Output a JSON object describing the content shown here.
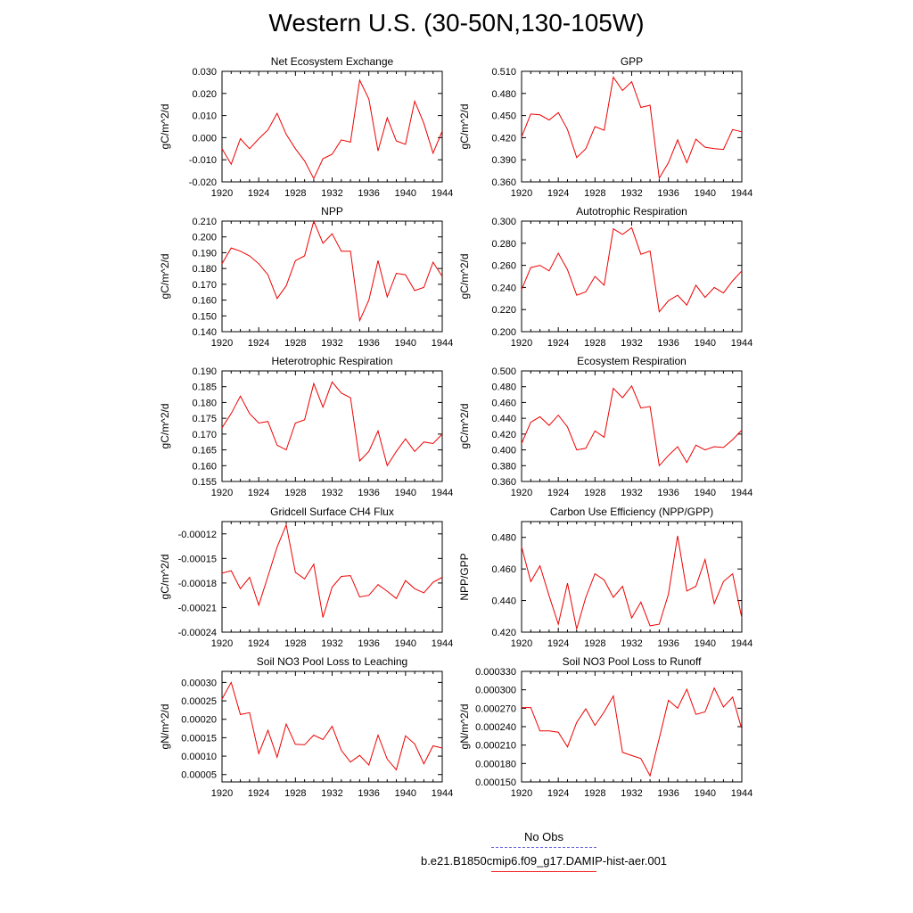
{
  "title": "Western U.S. (30-50N,130-105W)",
  "legend": {
    "obs_label": "No Obs",
    "model_label": "b.e21.B1850cmip6.f09_g17.DAMIP-hist-aer.001",
    "colors": {
      "obs": "#6666dd",
      "model": "#ee0000"
    }
  },
  "chart_data": [
    {
      "type": "line",
      "title": "Net Ecosystem Exchange",
      "xlabel": "",
      "ylabel": "gC/m^2/d",
      "xlim": [
        1920,
        1944
      ],
      "ylim": [
        -0.02,
        0.03
      ],
      "xticks": [
        1920,
        1924,
        1928,
        1932,
        1936,
        1940,
        1944
      ],
      "yticks": [
        -0.02,
        -0.01,
        0.0,
        0.01,
        0.02,
        0.03
      ],
      "ytick_labels": [
        "-0.020",
        "-0.010",
        "0.000",
        "0.010",
        "0.020",
        "0.030"
      ],
      "x": [
        1920,
        1921,
        1922,
        1923,
        1924,
        1925,
        1926,
        1927,
        1928,
        1929,
        1930,
        1931,
        1932,
        1933,
        1934,
        1935,
        1936,
        1937,
        1938,
        1939,
        1940,
        1941,
        1942,
        1943,
        1944
      ],
      "values": [
        -0.005,
        -0.012,
        -0.0005,
        -0.005,
        -0.0005,
        0.0035,
        0.011,
        0.0015,
        -0.005,
        -0.0105,
        -0.0185,
        -0.0095,
        -0.0075,
        -0.001,
        -0.002,
        0.026,
        0.0175,
        -0.006,
        0.009,
        -0.0015,
        -0.003,
        0.0165,
        0.0065,
        -0.007,
        0.003
      ]
    },
    {
      "type": "line",
      "title": "GPP",
      "xlabel": "",
      "ylabel": "gC/m^2/d",
      "xlim": [
        1920,
        1944
      ],
      "ylim": [
        0.36,
        0.51
      ],
      "xticks": [
        1920,
        1924,
        1928,
        1932,
        1936,
        1940,
        1944
      ],
      "yticks": [
        0.36,
        0.39,
        0.42,
        0.45,
        0.48,
        0.51
      ],
      "ytick_labels": [
        "0.360",
        "0.390",
        "0.420",
        "0.450",
        "0.480",
        "0.510"
      ],
      "x": [
        1920,
        1921,
        1922,
        1923,
        1924,
        1925,
        1926,
        1927,
        1928,
        1929,
        1930,
        1931,
        1932,
        1933,
        1934,
        1935,
        1936,
        1937,
        1938,
        1939,
        1940,
        1941,
        1942,
        1943,
        1944
      ],
      "values": [
        0.421,
        0.452,
        0.451,
        0.444,
        0.454,
        0.431,
        0.393,
        0.405,
        0.435,
        0.43,
        0.502,
        0.484,
        0.496,
        0.461,
        0.464,
        0.365,
        0.386,
        0.417,
        0.386,
        0.418,
        0.407,
        0.405,
        0.404,
        0.431,
        0.428
      ]
    },
    {
      "type": "line",
      "title": "NPP",
      "xlabel": "",
      "ylabel": "gC/m^2/d",
      "xlim": [
        1920,
        1944
      ],
      "ylim": [
        0.14,
        0.21
      ],
      "xticks": [
        1920,
        1924,
        1928,
        1932,
        1936,
        1940,
        1944
      ],
      "yticks": [
        0.14,
        0.15,
        0.16,
        0.17,
        0.18,
        0.19,
        0.2,
        0.21
      ],
      "ytick_labels": [
        "0.140",
        "0.150",
        "0.160",
        "0.170",
        "0.180",
        "0.190",
        "0.200",
        "0.210"
      ],
      "x": [
        1920,
        1921,
        1922,
        1923,
        1924,
        1925,
        1926,
        1927,
        1928,
        1929,
        1930,
        1931,
        1932,
        1933,
        1934,
        1935,
        1936,
        1937,
        1938,
        1939,
        1940,
        1941,
        1942,
        1943,
        1944
      ],
      "values": [
        0.183,
        0.193,
        0.191,
        0.188,
        0.183,
        0.176,
        0.161,
        0.169,
        0.185,
        0.188,
        0.21,
        0.196,
        0.202,
        0.191,
        0.191,
        0.147,
        0.16,
        0.185,
        0.162,
        0.177,
        0.176,
        0.166,
        0.168,
        0.184,
        0.175
      ]
    },
    {
      "type": "line",
      "title": "Autotrophic Respiration",
      "xlabel": "",
      "ylabel": "gC/m^2/d",
      "xlim": [
        1920,
        1944
      ],
      "ylim": [
        0.2,
        0.3
      ],
      "xticks": [
        1920,
        1924,
        1928,
        1932,
        1936,
        1940,
        1944
      ],
      "yticks": [
        0.2,
        0.22,
        0.24,
        0.26,
        0.28,
        0.3
      ],
      "ytick_labels": [
        "0.200",
        "0.220",
        "0.240",
        "0.260",
        "0.280",
        "0.300"
      ],
      "x": [
        1920,
        1921,
        1922,
        1923,
        1924,
        1925,
        1926,
        1927,
        1928,
        1929,
        1930,
        1931,
        1932,
        1933,
        1934,
        1935,
        1936,
        1937,
        1938,
        1939,
        1940,
        1941,
        1942,
        1943,
        1944
      ],
      "values": [
        0.238,
        0.258,
        0.26,
        0.255,
        0.271,
        0.256,
        0.233,
        0.236,
        0.25,
        0.242,
        0.293,
        0.288,
        0.294,
        0.27,
        0.273,
        0.218,
        0.228,
        0.233,
        0.224,
        0.242,
        0.231,
        0.24,
        0.235,
        0.246,
        0.255
      ]
    },
    {
      "type": "line",
      "title": "Heterotrophic Respiration",
      "xlabel": "",
      "ylabel": "gC/m^2/d",
      "xlim": [
        1920,
        1944
      ],
      "ylim": [
        0.155,
        0.19
      ],
      "xticks": [
        1920,
        1924,
        1928,
        1932,
        1936,
        1940,
        1944
      ],
      "yticks": [
        0.155,
        0.16,
        0.165,
        0.17,
        0.175,
        0.18,
        0.185,
        0.19
      ],
      "ytick_labels": [
        "0.155",
        "0.160",
        "0.165",
        "0.170",
        "0.175",
        "0.180",
        "0.185",
        "0.190"
      ],
      "x": [
        1920,
        1921,
        1922,
        1923,
        1924,
        1925,
        1926,
        1927,
        1928,
        1929,
        1930,
        1931,
        1932,
        1933,
        1934,
        1935,
        1936,
        1937,
        1938,
        1939,
        1940,
        1941,
        1942,
        1943,
        1944
      ],
      "values": [
        0.172,
        0.1765,
        0.182,
        0.1765,
        0.1735,
        0.174,
        0.1665,
        0.165,
        0.1735,
        0.1745,
        0.186,
        0.1785,
        0.1865,
        0.183,
        0.1815,
        0.1615,
        0.1645,
        0.171,
        0.16,
        0.1645,
        0.1685,
        0.1645,
        0.1675,
        0.167,
        0.17
      ]
    },
    {
      "type": "line",
      "title": "Ecosystem Respiration",
      "xlabel": "",
      "ylabel": "gC/m^2/d",
      "xlim": [
        1920,
        1944
      ],
      "ylim": [
        0.36,
        0.5
      ],
      "xticks": [
        1920,
        1924,
        1928,
        1932,
        1936,
        1940,
        1944
      ],
      "yticks": [
        0.36,
        0.38,
        0.4,
        0.42,
        0.44,
        0.46,
        0.48,
        0.5
      ],
      "ytick_labels": [
        "0.360",
        "0.380",
        "0.400",
        "0.420",
        "0.440",
        "0.460",
        "0.480",
        "0.500"
      ],
      "x": [
        1920,
        1921,
        1922,
        1923,
        1924,
        1925,
        1926,
        1927,
        1928,
        1929,
        1930,
        1931,
        1932,
        1933,
        1934,
        1935,
        1936,
        1937,
        1938,
        1939,
        1940,
        1941,
        1942,
        1943,
        1944
      ],
      "values": [
        0.408,
        0.435,
        0.442,
        0.431,
        0.444,
        0.429,
        0.4,
        0.402,
        0.424,
        0.416,
        0.478,
        0.466,
        0.481,
        0.453,
        0.455,
        0.38,
        0.393,
        0.404,
        0.384,
        0.406,
        0.4,
        0.404,
        0.403,
        0.413,
        0.425
      ]
    },
    {
      "type": "line",
      "title": "Gridcell Surface CH4 Flux",
      "xlabel": "",
      "ylabel": "gC/m^2/d",
      "xlim": [
        1920,
        1944
      ],
      "ylim": [
        -0.00024,
        -0.000105
      ],
      "xticks": [
        1920,
        1924,
        1928,
        1932,
        1936,
        1940,
        1944
      ],
      "yticks": [
        -0.00024,
        -0.00021,
        -0.00018,
        -0.00015,
        -0.00012
      ],
      "ytick_labels": [
        "-0.00024",
        "-0.00021",
        "-0.00018",
        "-0.00015",
        "-0.00012"
      ],
      "x": [
        1920,
        1921,
        1922,
        1923,
        1924,
        1925,
        1926,
        1927,
        1928,
        1929,
        1930,
        1931,
        1932,
        1933,
        1934,
        1935,
        1936,
        1937,
        1938,
        1939,
        1940,
        1941,
        1942,
        1943,
        1944
      ],
      "values": [
        -0.000168,
        -0.000165,
        -0.000187,
        -0.000173,
        -0.000207,
        -0.000172,
        -0.000136,
        -0.000109,
        -0.000167,
        -0.000175,
        -0.000157,
        -0.000222,
        -0.000185,
        -0.000172,
        -0.000171,
        -0.000197,
        -0.000195,
        -0.000182,
        -0.00019,
        -0.000199,
        -0.000177,
        -0.000187,
        -0.000192,
        -0.000179,
        -0.000173
      ]
    },
    {
      "type": "line",
      "title": "Carbon Use Efficiency (NPP/GPP)",
      "xlabel": "",
      "ylabel": "NPP/GPP",
      "xlim": [
        1920,
        1944
      ],
      "ylim": [
        0.42,
        0.49
      ],
      "xticks": [
        1920,
        1924,
        1928,
        1932,
        1936,
        1940,
        1944
      ],
      "yticks": [
        0.42,
        0.44,
        0.46,
        0.48
      ],
      "ytick_labels": [
        "0.420",
        "0.440",
        "0.460",
        "0.480"
      ],
      "x": [
        1920,
        1921,
        1922,
        1923,
        1924,
        1925,
        1926,
        1927,
        1928,
        1929,
        1930,
        1931,
        1932,
        1933,
        1934,
        1935,
        1936,
        1937,
        1938,
        1939,
        1940,
        1941,
        1942,
        1943,
        1944
      ],
      "values": [
        0.474,
        0.452,
        0.462,
        0.443,
        0.425,
        0.451,
        0.422,
        0.442,
        0.457,
        0.453,
        0.442,
        0.449,
        0.429,
        0.439,
        0.424,
        0.425,
        0.444,
        0.481,
        0.446,
        0.449,
        0.466,
        0.438,
        0.452,
        0.457,
        0.429
      ]
    },
    {
      "type": "line",
      "title": "Soil NO3 Pool Loss to Leaching",
      "xlabel": "",
      "ylabel": "gN/m^2/d",
      "xlim": [
        1920,
        1944
      ],
      "ylim": [
        3e-05,
        0.00033
      ],
      "xticks": [
        1920,
        1924,
        1928,
        1932,
        1936,
        1940,
        1944
      ],
      "yticks": [
        5e-05,
        0.0001,
        0.00015,
        0.0002,
        0.00025,
        0.0003
      ],
      "ytick_labels": [
        "0.00005",
        "0.00010",
        "0.00015",
        "0.00020",
        "0.00025",
        "0.00030"
      ],
      "x": [
        1920,
        1921,
        1922,
        1923,
        1924,
        1925,
        1926,
        1927,
        1928,
        1929,
        1930,
        1931,
        1932,
        1933,
        1934,
        1935,
        1936,
        1937,
        1938,
        1939,
        1940,
        1941,
        1942,
        1943,
        1944
      ],
      "values": [
        0.000255,
        0.0003,
        0.000213,
        0.000218,
        0.000107,
        0.00017,
        9.7e-05,
        0.000187,
        0.000132,
        0.000131,
        0.000157,
        0.000145,
        0.000181,
        0.000116,
        8.4e-05,
        0.000102,
        7.6e-05,
        0.000157,
        9.2e-05,
        6.3e-05,
        0.000155,
        0.000133,
        7.9e-05,
        0.000128,
        0.000122
      ]
    },
    {
      "type": "line",
      "title": "Soil NO3 Pool Loss to Runoff",
      "xlabel": "",
      "ylabel": "gN/m^2/d",
      "xlim": [
        1920,
        1944
      ],
      "ylim": [
        0.00015,
        0.00033
      ],
      "xticks": [
        1920,
        1924,
        1928,
        1932,
        1936,
        1940,
        1944
      ],
      "yticks": [
        0.00015,
        0.00018,
        0.00021,
        0.00024,
        0.00027,
        0.0003,
        0.00033
      ],
      "ytick_labels": [
        "0.000150",
        "0.000180",
        "0.000210",
        "0.000240",
        "0.000270",
        "0.000300",
        "0.000330"
      ],
      "x": [
        1920,
        1921,
        1922,
        1923,
        1924,
        1925,
        1926,
        1927,
        1928,
        1929,
        1930,
        1931,
        1932,
        1933,
        1934,
        1935,
        1936,
        1937,
        1938,
        1939,
        1940,
        1941,
        1942,
        1943,
        1944
      ],
      "values": [
        0.000271,
        0.000271,
        0.000233,
        0.000233,
        0.000231,
        0.000207,
        0.000247,
        0.000269,
        0.000242,
        0.000264,
        0.00029,
        0.000198,
        0.000193,
        0.000188,
        0.00016,
        0.000221,
        0.000283,
        0.00027,
        0.000301,
        0.00026,
        0.000264,
        0.000303,
        0.000272,
        0.000288,
        0.000236
      ]
    }
  ]
}
